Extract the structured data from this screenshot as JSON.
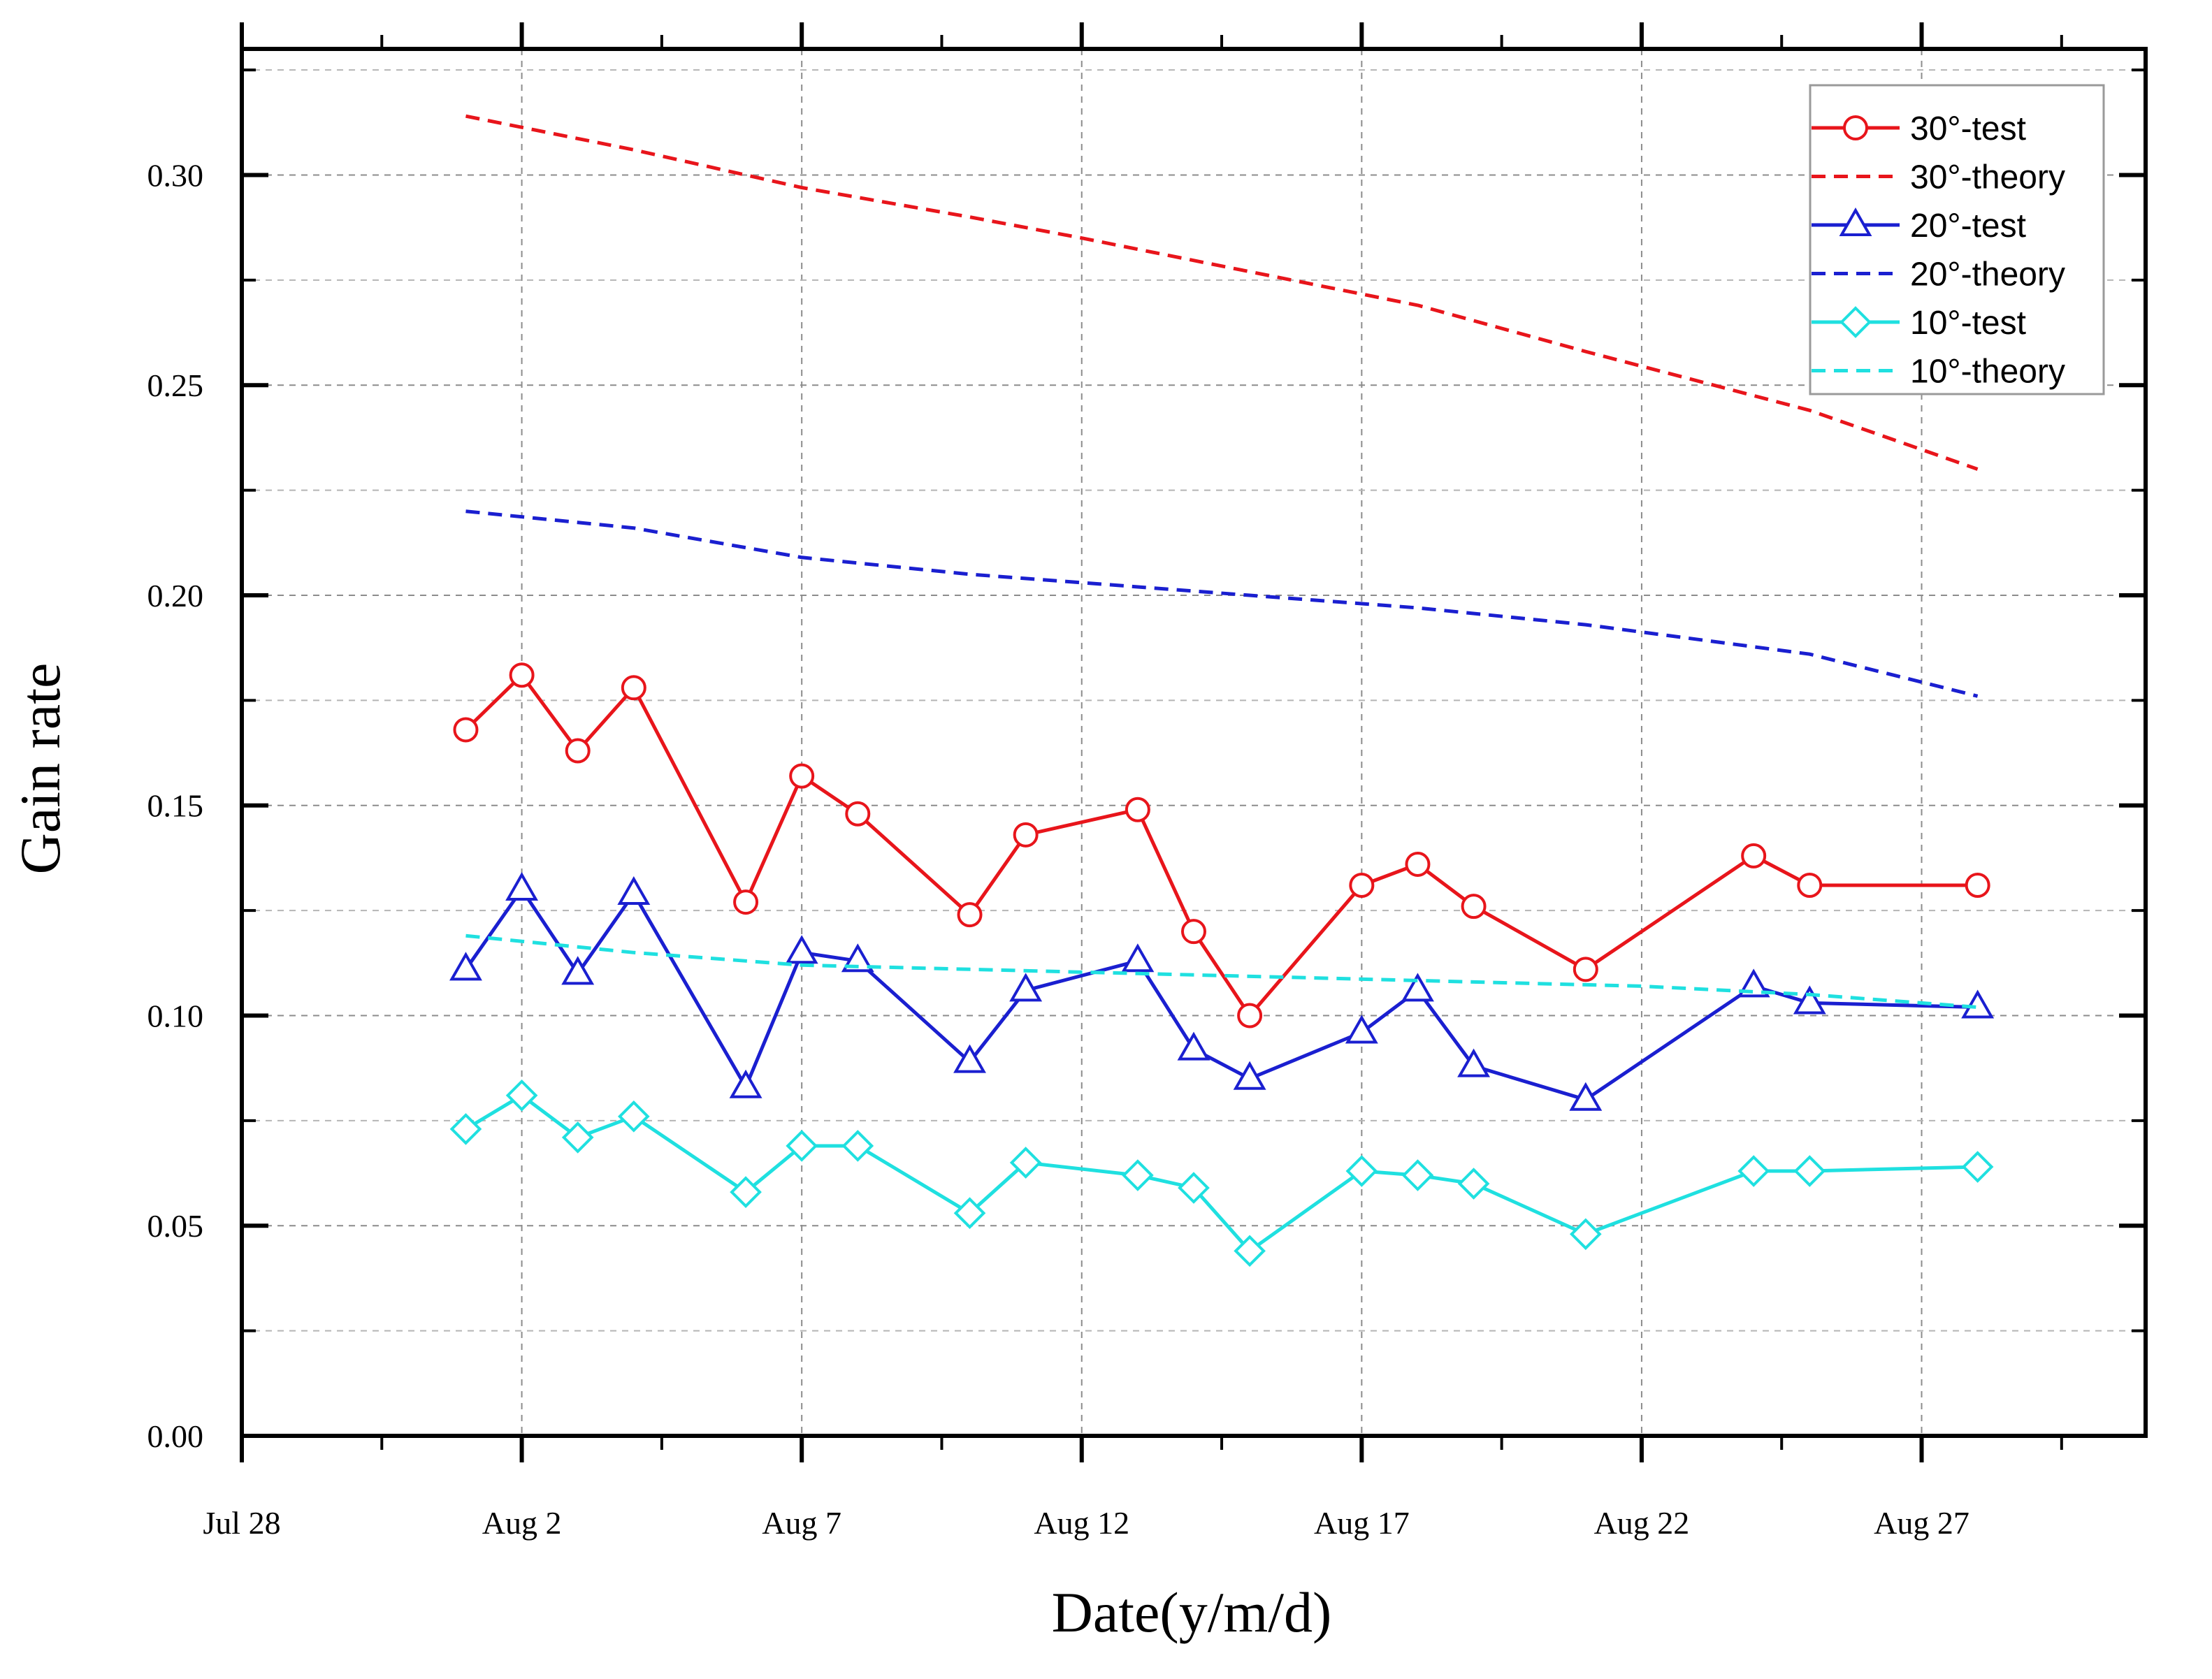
{
  "chart_data": {
    "type": "line",
    "title": "",
    "xlabel": "Date(y/m/d)",
    "ylabel": "Gain rate",
    "x_unit": "days since Jul 28",
    "xlim": [
      0,
      34
    ],
    "ylim": [
      0,
      0.33
    ],
    "x_tick_values": [
      0,
      5,
      10,
      15,
      20,
      25,
      30
    ],
    "x_tick_labels": [
      "Jul 28",
      "Aug 2",
      "Aug 7",
      "Aug 12",
      "Aug 17",
      "Aug 22",
      "Aug 27"
    ],
    "y_tick_values": [
      0,
      0.05,
      0.1,
      0.15,
      0.2,
      0.25,
      0.3
    ],
    "y_tick_labels": [
      "0.00",
      "0.05",
      "0.10",
      "0.15",
      "0.20",
      "0.25",
      "0.30"
    ],
    "grid": true,
    "legend_position": "top-right",
    "series": [
      {
        "name": "30°-test",
        "color": "#e8151b",
        "style": "solid",
        "marker": "circle",
        "x": [
          4,
          5,
          6,
          7,
          9,
          10,
          11,
          13,
          14,
          16,
          17,
          18,
          20,
          21,
          22,
          24,
          27,
          28,
          31
        ],
        "y": [
          0.168,
          0.181,
          0.163,
          0.178,
          0.127,
          0.157,
          0.148,
          0.124,
          0.143,
          0.149,
          0.12,
          0.1,
          0.131,
          0.136,
          0.126,
          0.111,
          0.138,
          0.131,
          0.131
        ]
      },
      {
        "name": "30°-theory",
        "color": "#e8151b",
        "style": "dashed",
        "marker": "none",
        "x": [
          4,
          7,
          10,
          13,
          15,
          18,
          21,
          24,
          28,
          31
        ],
        "y": [
          0.314,
          0.306,
          0.297,
          0.29,
          0.285,
          0.277,
          0.269,
          0.258,
          0.244,
          0.23
        ]
      },
      {
        "name": "20°-test",
        "color": "#1a1fd0",
        "style": "solid",
        "marker": "triangle",
        "x": [
          4,
          5,
          6,
          7,
          9,
          10,
          11,
          13,
          14,
          16,
          17,
          18,
          20,
          21,
          22,
          24,
          27,
          28,
          31
        ],
        "y": [
          0.111,
          0.13,
          0.11,
          0.129,
          0.083,
          0.115,
          0.113,
          0.089,
          0.106,
          0.113,
          0.092,
          0.085,
          0.096,
          0.106,
          0.088,
          0.08,
          0.107,
          0.103,
          0.102
        ]
      },
      {
        "name": "20°-theory",
        "color": "#1a1fd0",
        "style": "dashed",
        "marker": "none",
        "x": [
          4,
          7,
          10,
          13,
          15,
          18,
          21,
          24,
          28,
          31
        ],
        "y": [
          0.22,
          0.216,
          0.209,
          0.205,
          0.203,
          0.2,
          0.197,
          0.193,
          0.186,
          0.176
        ]
      },
      {
        "name": "10°-test",
        "color": "#1fe0e0",
        "style": "solid",
        "marker": "diamond",
        "x": [
          4,
          5,
          6,
          7,
          9,
          10,
          11,
          13,
          14,
          16,
          17,
          18,
          20,
          21,
          22,
          24,
          27,
          28,
          31
        ],
        "y": [
          0.073,
          0.081,
          0.071,
          0.076,
          0.058,
          0.069,
          0.069,
          0.053,
          0.065,
          0.062,
          0.059,
          0.044,
          0.063,
          0.062,
          0.06,
          0.048,
          0.063,
          0.063,
          0.064
        ]
      },
      {
        "name": "10°-theory",
        "color": "#1fe0e0",
        "style": "dashed",
        "marker": "none",
        "x": [
          4,
          7,
          10,
          13,
          16,
          19,
          22,
          25,
          28,
          31
        ],
        "y": [
          0.119,
          0.115,
          0.112,
          0.111,
          0.11,
          0.109,
          0.108,
          0.107,
          0.105,
          0.102
        ]
      }
    ]
  }
}
